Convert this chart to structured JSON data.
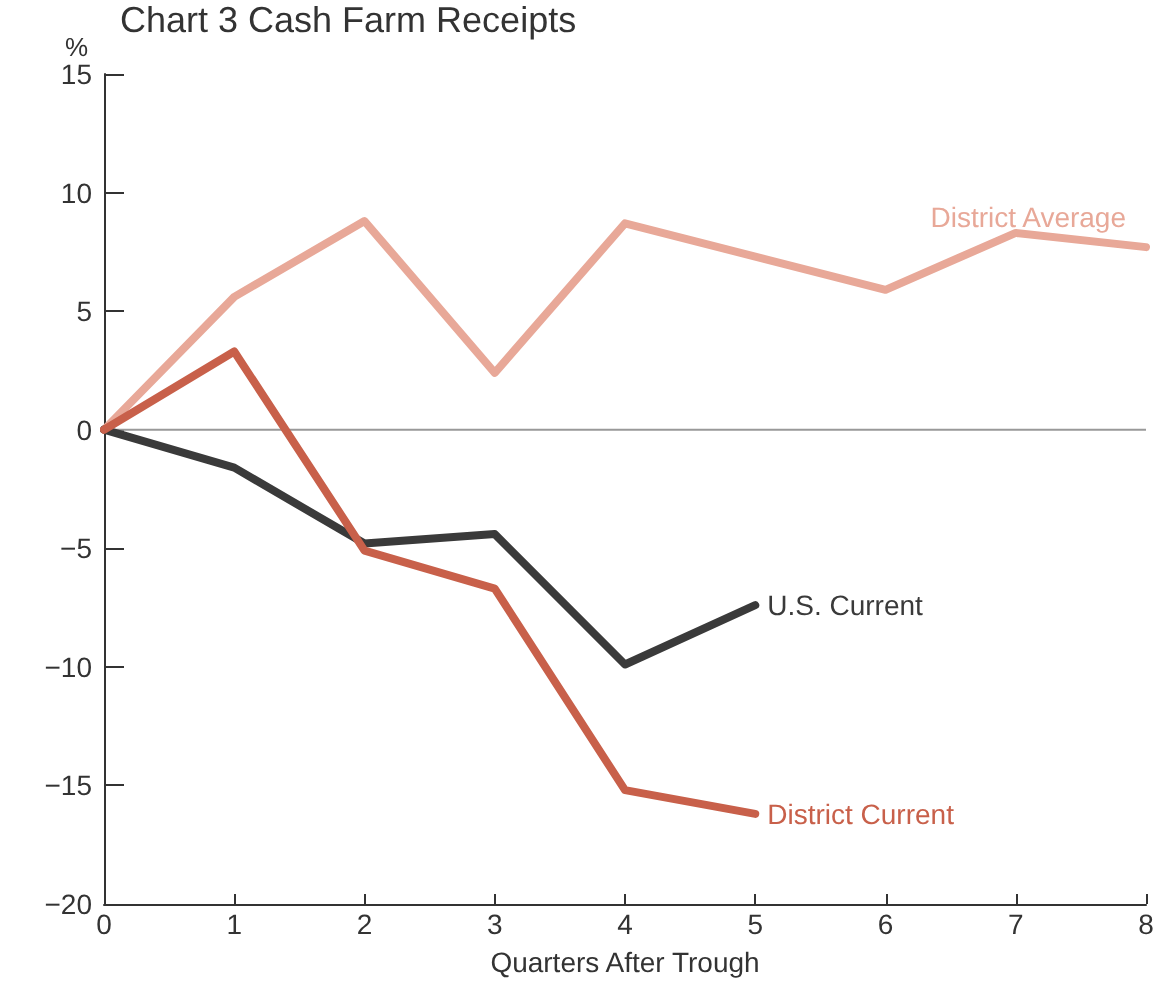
{
  "chart_data": {
    "type": "line",
    "title": "Chart 3 Cash Farm Receipts",
    "xlabel": "Quarters After Trough",
    "ylabel": "%",
    "x": [
      0,
      1,
      2,
      3,
      4,
      5,
      6,
      7,
      8
    ],
    "series": [
      {
        "name": "District Average",
        "color": "#e8a898",
        "values": [
          0,
          5.6,
          8.8,
          2.4,
          8.7,
          7.3,
          5.9,
          8.3,
          7.7
        ]
      },
      {
        "name": "U.S. Current",
        "color": "#3a3a3a",
        "values": [
          0,
          -1.6,
          -4.8,
          -4.4,
          -9.9,
          -7.4,
          null,
          null,
          null
        ]
      },
      {
        "name": "District Current",
        "color": "#c8604a",
        "values": [
          0,
          3.3,
          -5.1,
          -6.7,
          -15.2,
          -16.2,
          null,
          null,
          null
        ]
      }
    ],
    "xlim": [
      0,
      8
    ],
    "xticks": [
      0,
      1,
      2,
      3,
      4,
      5,
      6,
      7,
      8
    ],
    "ylim": [
      -20,
      15
    ],
    "yticks": [
      -20,
      -15,
      -10,
      -5,
      0,
      5,
      10,
      15
    ],
    "ref_lines": [
      {
        "axis": "y",
        "value": 0,
        "color": "#999999"
      }
    ],
    "grid": false,
    "marker": "none",
    "line_style": "solid"
  }
}
